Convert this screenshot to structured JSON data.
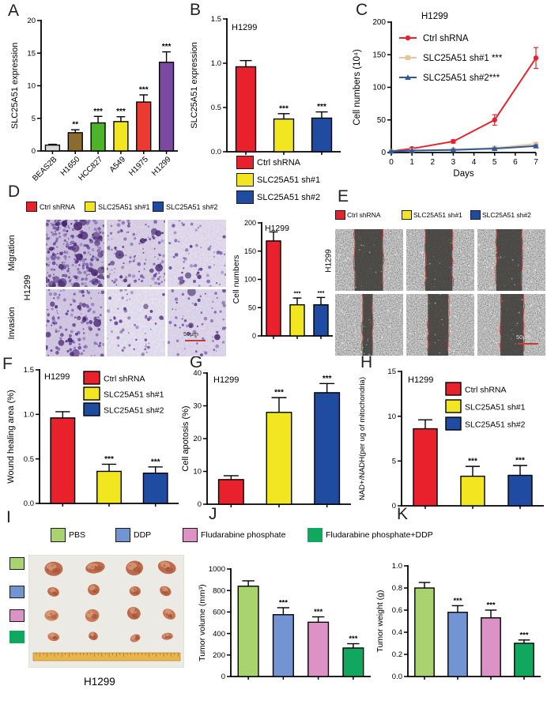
{
  "sh_groups": [
    {
      "label": "Ctrl shRNA",
      "color": "#e8212d"
    },
    {
      "label": "SLC25A51 sh#1",
      "color": "#f2e621"
    },
    {
      "label": "SLC25A51 sh#2",
      "color": "#1f4ba0"
    }
  ],
  "treatment_groups": [
    {
      "label": "PBS",
      "color": "#a8d36e"
    },
    {
      "label": "DDP",
      "color": "#7394d2"
    },
    {
      "label": "Fludarabine phosphate",
      "color": "#dd92c6"
    },
    {
      "label": "Fludarabine phosphate+DDP",
      "color": "#12a75f",
      "noborder": true
    }
  ],
  "panels": {
    "a": {
      "label": "A",
      "chart": {
        "type": "bar",
        "ylabel": "SLC25A51 expression",
        "ylim": [
          0,
          20
        ],
        "yticks": [
          "0",
          "5",
          "10",
          "15",
          "20"
        ],
        "categories": [
          "BEAS2B",
          "H1650",
          "HCC827",
          "A549",
          "H1975",
          "H1299"
        ],
        "values": [
          0.9,
          2.8,
          4.3,
          4.5,
          7.5,
          13.6
        ],
        "errors": [
          0.12,
          0.45,
          1.0,
          0.75,
          1.1,
          1.6
        ],
        "sig": [
          "",
          "**",
          "***",
          "***",
          "***",
          "***"
        ],
        "colors": [
          "#d8d8d8",
          "#8a6c2e",
          "#4eb32b",
          "#f2e621",
          "#ec3a31",
          "#7b4aa0"
        ]
      }
    },
    "b": {
      "label": "B",
      "chart": {
        "type": "bar",
        "title": "H1299",
        "ylabel": "SLC25A51 expression",
        "ylim": [
          0,
          1.5
        ],
        "yticks": [
          "0.0",
          "0.5",
          "1.0",
          "1.5"
        ],
        "categories": [
          "Ctrl shRNA",
          "SLC25A51 sh#1",
          "SLC25A51 sh#2"
        ],
        "values": [
          0.96,
          0.37,
          0.38
        ],
        "errors": [
          0.07,
          0.06,
          0.07
        ],
        "sig": [
          "",
          "***",
          "***"
        ],
        "colors": [
          "#e8212d",
          "#f2e621",
          "#1f4ba0"
        ]
      }
    },
    "c": {
      "label": "C",
      "chart": {
        "type": "line",
        "title": "H1299",
        "xlabel": "Days",
        "ylabel": "Cell numbers (10⁴)",
        "xlim": [
          0,
          7
        ],
        "xticks": [
          "0",
          "1",
          "2",
          "3",
          "4",
          "5",
          "6",
          "7"
        ],
        "ylim": [
          0,
          200
        ],
        "yticks": [
          "0",
          "50",
          "100",
          "150",
          "200"
        ],
        "x": [
          0,
          1,
          3,
          5,
          7
        ],
        "series": [
          {
            "name": "Ctrl shRNA",
            "marker": "circle",
            "color": "#e8212d",
            "values": [
              2,
              6,
              17,
              50,
              145
            ],
            "errors": [
              1,
              1.5,
              2.5,
              8,
              16
            ]
          },
          {
            "name": "SLC25A51 sh#1 ***",
            "marker": "square",
            "color": "#e9c39c",
            "values": [
              2,
              3,
              4.5,
              7,
              13
            ],
            "errors": [
              0.4,
              0.5,
              0.8,
              1.2,
              2
            ]
          },
          {
            "name": "SLC25A51 sh#2***",
            "marker": "triangle",
            "color": "#2d5a9b",
            "values": [
              2,
              3,
              4,
              6,
              10
            ],
            "errors": [
              0.4,
              0.5,
              0.8,
              1,
              1.5
            ]
          }
        ]
      }
    },
    "d": {
      "label": "D",
      "row_labels": [
        "Migration",
        "Invasion"
      ],
      "side_label": "H1299",
      "scalebar": "50μm",
      "chart": {
        "type": "bar",
        "title": "H1299",
        "ylabel": "Cell numbers",
        "ylim": [
          0,
          200
        ],
        "yticks": [
          "0",
          "50",
          "100",
          "150",
          "200"
        ],
        "categories": [
          "Ctrl shRNA",
          "SLC25A51 sh#1",
          "SLC25A51 sh#2"
        ],
        "values": [
          168,
          55,
          55
        ],
        "errors": [
          16,
          12,
          13
        ],
        "sig": [
          "",
          "***",
          "***"
        ],
        "colors": [
          "#e8212d",
          "#f2e621",
          "#1f4ba0"
        ]
      }
    },
    "e": {
      "label": "E",
      "side_label": "H1299",
      "scalebar": "50μm"
    },
    "f": {
      "label": "F",
      "chart": {
        "type": "bar",
        "title": "H1299",
        "ylabel": "Wound healing area (%)",
        "ylim": [
          0,
          1.5
        ],
        "yticks": [
          "0.0",
          "0.5",
          "1.0",
          "1.5"
        ],
        "categories": [
          "Ctrl shRNA",
          "SLC25A51 sh#1",
          "SLC25A51 sh#2"
        ],
        "values": [
          0.96,
          0.36,
          0.34
        ],
        "errors": [
          0.07,
          0.08,
          0.07
        ],
        "sig": [
          "",
          "***",
          "***"
        ],
        "colors": [
          "#e8212d",
          "#f2e621",
          "#1f4ba0"
        ]
      }
    },
    "g": {
      "label": "G",
      "chart": {
        "type": "bar",
        "title": "H1299",
        "ylabel": "Cell apotosis (%)",
        "ylim": [
          0,
          40
        ],
        "yticks": [
          "0",
          "10",
          "20",
          "30",
          "40"
        ],
        "categories": [
          "Ctrl shRNA",
          "SLC25A51 sh#1",
          "SLC25A51 sh#2"
        ],
        "values": [
          7.5,
          28,
          34
        ],
        "errors": [
          1.2,
          4.5,
          2.8
        ],
        "sig": [
          "",
          "***",
          "***"
        ],
        "colors": [
          "#e8212d",
          "#f2e621",
          "#1f4ba0"
        ]
      }
    },
    "h": {
      "label": "H",
      "chart": {
        "type": "bar",
        "title": "H1299",
        "ylabel": "NAD+/NADH(per ug of mitochondria)",
        "ylim": [
          0,
          15
        ],
        "yticks": [
          "0",
          "5",
          "10",
          "15"
        ],
        "categories": [
          "Ctrl shRNA",
          "SLC25A51 sh#1",
          "SLC25A51 sh#2"
        ],
        "values": [
          8.6,
          3.3,
          3.4
        ],
        "errors": [
          1.0,
          1.1,
          1.1
        ],
        "sig": [
          "",
          "***",
          "***"
        ],
        "colors": [
          "#e8212d",
          "#f2e621",
          "#1f4ba0"
        ]
      }
    },
    "i": {
      "label": "I",
      "caption": "H1299"
    },
    "j": {
      "label": "J",
      "chart": {
        "type": "bar",
        "ylabel": "Tumor volume (mm³)",
        "ylim": [
          0,
          1000
        ],
        "yticks": [
          "0",
          "200",
          "400",
          "600",
          "800",
          "1000"
        ],
        "categories": [
          "PBS",
          "DDP",
          "Fludarabine phosphate",
          "Fludarabine phosphate+DDP"
        ],
        "values": [
          840,
          575,
          505,
          265
        ],
        "errors": [
          50,
          65,
          50,
          40
        ],
        "sig": [
          "",
          "***",
          "***",
          "***"
        ],
        "colors": [
          "#a8d36e",
          "#7394d2",
          "#dd92c6",
          "#12a75f"
        ]
      }
    },
    "k": {
      "label": "K",
      "chart": {
        "type": "bar",
        "ylabel": "Tumor weight (g)",
        "ylim": [
          0,
          1.0
        ],
        "yticks": [
          "0.0",
          "0.2",
          "0.4",
          "0.6",
          "0.8",
          "1.0"
        ],
        "categories": [
          "PBS",
          "DDP",
          "Fludarabine phosphate",
          "Fludarabine phosphate+DDP"
        ],
        "values": [
          0.8,
          0.58,
          0.53,
          0.3
        ],
        "errors": [
          0.05,
          0.06,
          0.07,
          0.03
        ],
        "sig": [
          "",
          "***",
          "***",
          "***"
        ],
        "colors": [
          "#a8d36e",
          "#7394d2",
          "#dd92c6",
          "#12a75f"
        ]
      }
    }
  }
}
